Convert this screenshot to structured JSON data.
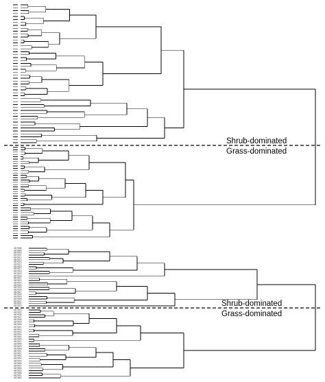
{
  "panels": [
    {
      "id": "upper",
      "upper_group_label": "Shrub-dominated",
      "lower_group_label": "Grass-dominated",
      "leaves_above_divider": 48,
      "leaves_below_divider": 40
    },
    {
      "id": "lower",
      "upper_group_label": "Shrub-dominated",
      "lower_group_label": "Grass-dominated",
      "leaves_above_divider": 26,
      "leaves_below_divider": 29,
      "leaf_labels": [
        "G67608",
        "G67609",
        "G67610",
        "G67611",
        "G67612",
        "G67613",
        "G67614",
        "G67615",
        "G67616",
        "G67617",
        "G67618",
        "G67619",
        "G67620",
        "G67621",
        "G67622",
        "G67623",
        "G67624",
        "G67625",
        "G67626",
        "G67627",
        "G67628",
        "G67629",
        "G67630",
        "G67631",
        "G67632",
        "G67633",
        "G67634",
        "G67635",
        "G67636",
        "G67637",
        "G67638",
        "G67639",
        "G67640",
        "G67641",
        "G67642",
        "G67643",
        "G67644",
        "G67645",
        "G67646",
        "G67647",
        "G67648",
        "G67649",
        "G67650",
        "G67651",
        "G67652",
        "G67653",
        "G67654",
        "G67655",
        "G67656",
        "G67657",
        "G67658",
        "G67659",
        "G67660",
        "G67661",
        "G67662"
      ]
    }
  ]
}
